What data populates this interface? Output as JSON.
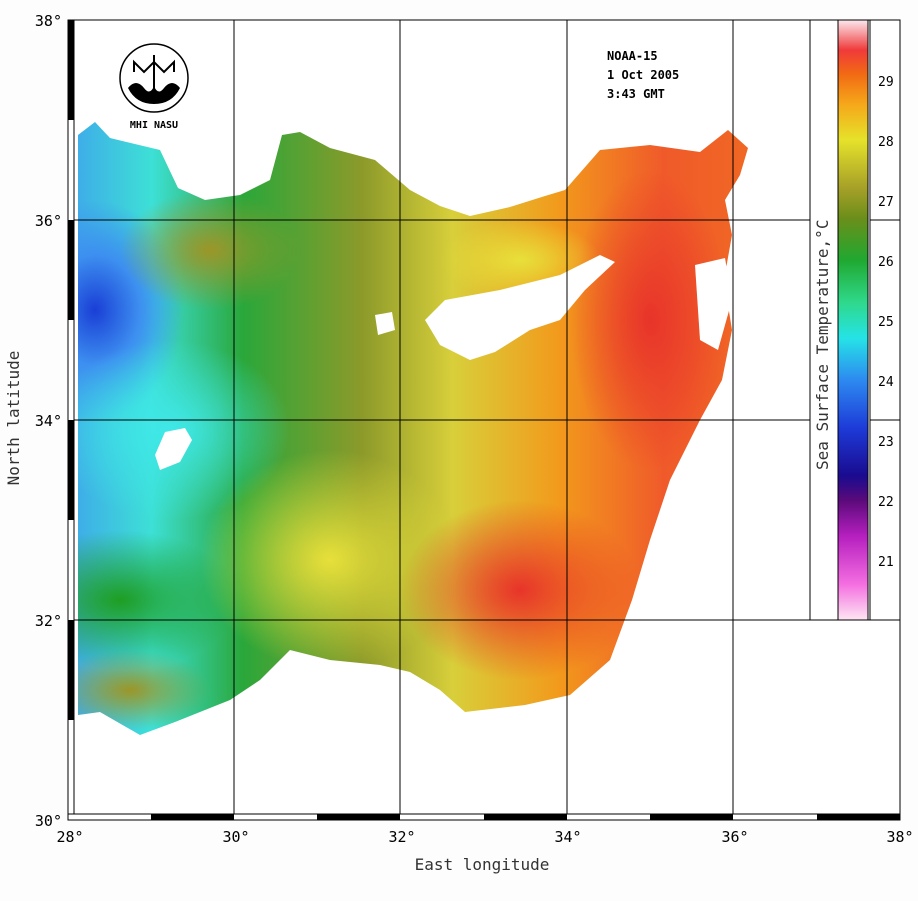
{
  "map": {
    "satellite": "NOAA-15",
    "date": "1 Oct 2005",
    "time": "3:43 GMT",
    "logo_text": "MHI NASU",
    "x_axis_title": "East longitude",
    "y_axis_title": "North latitude",
    "legend_title": "Sea Surface Temperature,°C",
    "lon_ticks": [
      "28°",
      "30°",
      "32°",
      "34°",
      "36°",
      "38°"
    ],
    "lat_ticks": [
      "38°",
      "36°",
      "34°",
      "32°",
      "30°"
    ],
    "colorbar_labels": [
      "29",
      "28",
      "27",
      "26",
      "25",
      "24",
      "23",
      "22",
      "21"
    ],
    "colors": {
      "sea_cool": "#2f6fe0",
      "sea_cyan": "#22e6e0",
      "sea_green": "#1fa52a",
      "sea_olive": "#9a9a30",
      "sea_yellow": "#d9d23a",
      "sea_orange": "#f08a14",
      "sea_red": "#ef4a2a",
      "land": "#ffffff"
    }
  }
}
